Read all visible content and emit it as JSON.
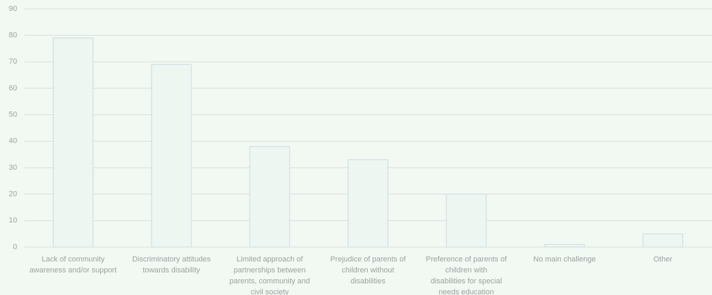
{
  "chart_data": {
    "type": "bar",
    "categories": [
      "Lack of community awareness and/or support",
      "Discriminatory attitudes towards disability",
      "Limited approach of partnerships between parents, community and civil society",
      "Prejudice of parents of children without disabilities",
      "Preference of parents of children with disabilities for special needs education",
      "No main challenge",
      "Other"
    ],
    "values": [
      79,
      69,
      38,
      33,
      20,
      1,
      5
    ],
    "color": "#eef6f2",
    "ylim": [
      0,
      90
    ],
    "yticks": [
      0,
      10,
      20,
      30,
      40,
      50,
      60,
      70,
      80,
      90
    ],
    "grid": true
  }
}
